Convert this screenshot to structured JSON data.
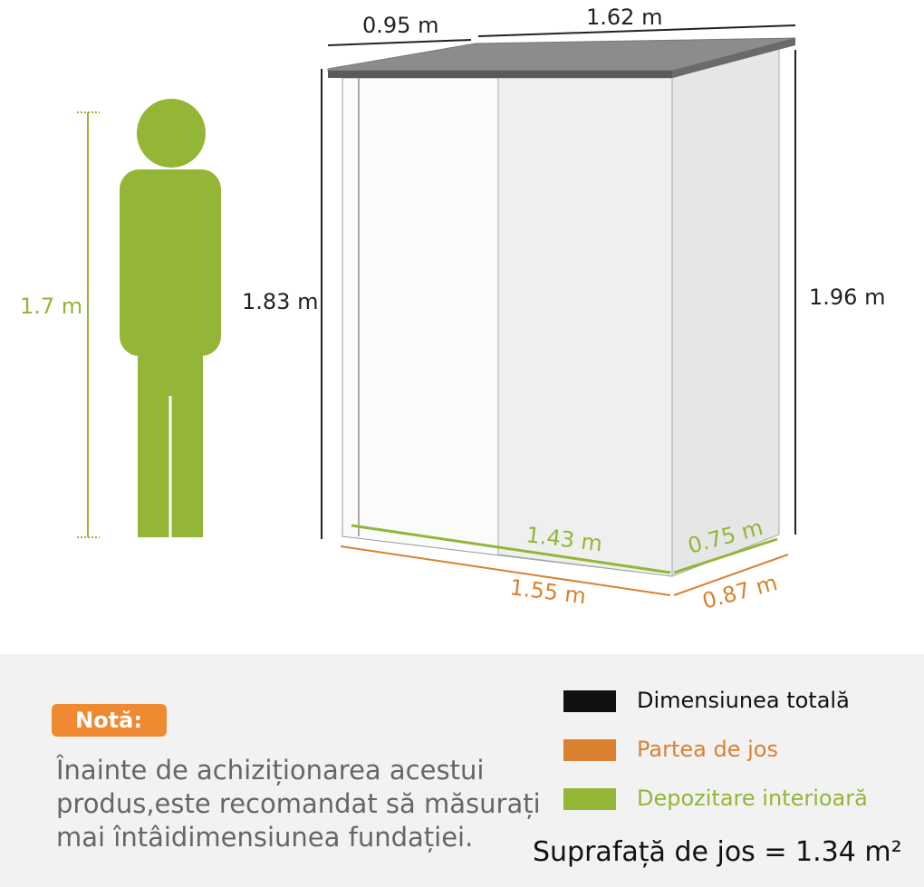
{
  "person": {
    "height_label": "1.7 m"
  },
  "shed": {
    "roof_depth": "0.95 m",
    "roof_width": "1.62 m",
    "front_height": "1.83 m",
    "back_height": "1.96 m",
    "inner_width": "1.43 m",
    "inner_depth": "0.75 m",
    "base_width": "1.55 m",
    "base_depth": "0.87 m"
  },
  "note": {
    "badge": "Notă:",
    "lines": [
      "Înainte de achiziționarea acestui",
      "produs,este recomandat să măsurați",
      "mai întâidimensiunea fundației."
    ]
  },
  "legend": [
    {
      "label": "Dimensiunea totală",
      "color": "#111111"
    },
    {
      "label": "Partea de jos",
      "color": "#d9812f"
    },
    {
      "label": "Depozitare interioară",
      "color": "#93b637"
    }
  ],
  "area": "Suprafață de jos = 1.34 m²"
}
